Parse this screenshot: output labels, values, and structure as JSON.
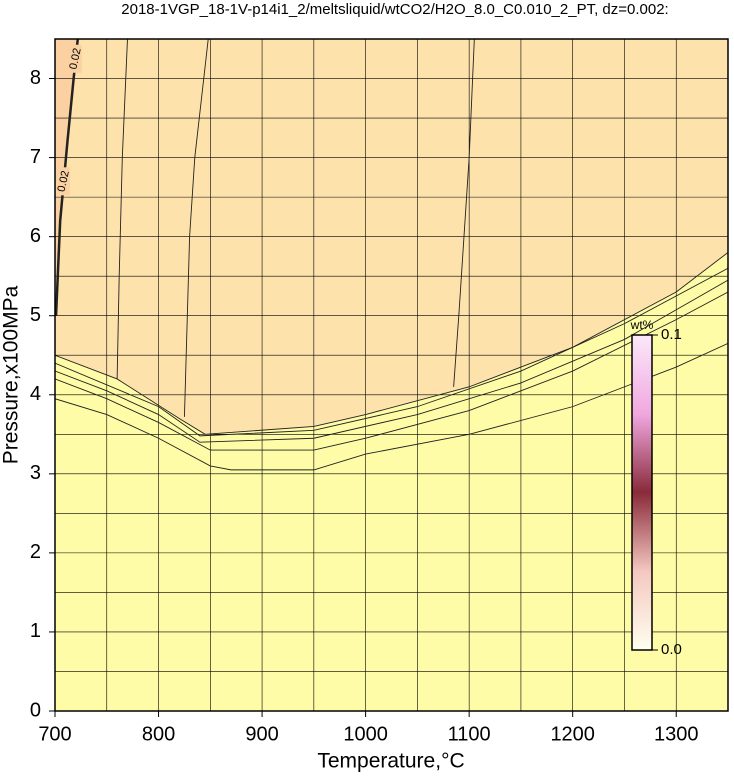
{
  "chart_data": {
    "type": "contour",
    "title": "2018-1VGP_18-1V-p14i1_2/meltsliquid/wtCO2/H2O_8.0_C0.010_2_PT, dz=0.002:",
    "xlabel": "Temperature,°C",
    "ylabel": "Pressure,x100MPa",
    "xlim": [
      700,
      1350
    ],
    "ylim": [
      0,
      8.5
    ],
    "xticks": [
      700,
      800,
      900,
      1000,
      1100,
      1200,
      1300
    ],
    "yticks": [
      0,
      1,
      2,
      3,
      4,
      5,
      6,
      7,
      8
    ],
    "xgrid": [
      700,
      750,
      800,
      850,
      900,
      950,
      1000,
      1050,
      1100,
      1150,
      1200,
      1250,
      1300
    ],
    "ygrid": [
      0.5,
      1,
      1.5,
      2,
      2.5,
      3,
      3.5,
      4,
      4.5,
      5,
      5.5,
      6,
      6.5,
      7,
      7.5,
      8
    ],
    "grid": true,
    "colors": {
      "low": "#fefca6",
      "high": "#fde2ab",
      "peak": "#fbd1a2"
    },
    "contours": [
      {
        "x": [
          700,
          750,
          800,
          850,
          870,
          950,
          1000,
          1100,
          1200,
          1300,
          1350
        ],
        "y": [
          3.95,
          3.75,
          3.45,
          3.1,
          3.05,
          3.05,
          3.25,
          3.5,
          3.85,
          4.35,
          4.65
        ]
      },
      {
        "x": [
          700,
          750,
          800,
          850,
          950,
          1000,
          1100,
          1200,
          1300,
          1350
        ],
        "y": [
          4.2,
          3.95,
          3.65,
          3.3,
          3.3,
          3.45,
          3.8,
          4.3,
          4.95,
          5.3
        ]
      },
      {
        "x": [
          700,
          750,
          800,
          840,
          950,
          1050,
          1150,
          1250,
          1350
        ],
        "y": [
          4.3,
          4.05,
          3.75,
          3.4,
          3.45,
          3.75,
          4.15,
          4.7,
          5.45
        ]
      },
      {
        "x": [
          700,
          800,
          840,
          950,
          1050,
          1150,
          1250,
          1350
        ],
        "y": [
          4.4,
          3.85,
          3.48,
          3.55,
          3.85,
          4.3,
          4.9,
          5.6
        ]
      },
      {
        "x": [
          700,
          760,
          820,
          845,
          950,
          1000,
          1100,
          1200,
          1300,
          1350
        ],
        "y": [
          4.5,
          4.2,
          3.7,
          3.5,
          3.6,
          3.75,
          4.1,
          4.6,
          5.3,
          5.8
        ]
      },
      {
        "x": [
          760,
          762,
          765,
          770
        ],
        "y": [
          4.2,
          5.5,
          7.0,
          8.5
        ]
      },
      {
        "x": [
          825,
          830,
          835,
          848
        ],
        "y": [
          3.72,
          6.0,
          7.0,
          8.5
        ]
      },
      {
        "x": [
          1085,
          1090,
          1100,
          1105
        ],
        "y": [
          4.1,
          5.0,
          7.0,
          8.5
        ]
      },
      {
        "x": [
          701,
          705,
          712,
          718,
          722
        ],
        "y": [
          5.0,
          6.2,
          7.2,
          8.0,
          8.5
        ],
        "label": "0.02"
      }
    ],
    "colorbar": {
      "label": "wt%",
      "lim": [
        0,
        0.1
      ],
      "ticks": [
        {
          "value": 0,
          "label": "0.0"
        },
        {
          "value": 0.1,
          "label": "0.1"
        }
      ],
      "colors": [
        "#fffff0",
        "#f4c8c0",
        "#8a2a3a",
        "#f0a8e0",
        "#fbe8fb"
      ]
    }
  }
}
